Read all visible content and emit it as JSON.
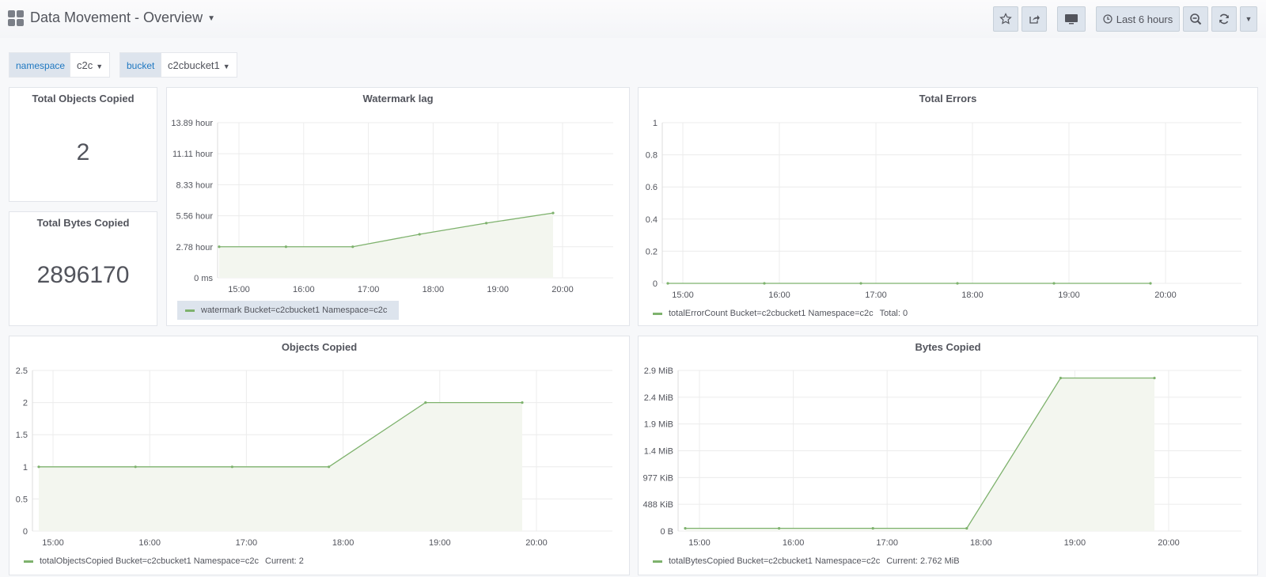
{
  "header": {
    "title": "Data Movement - Overview",
    "time_range": "Last 6 hours"
  },
  "variables": [
    {
      "label": "namespace",
      "value": "c2c"
    },
    {
      "label": "bucket",
      "value": "c2cbucket1"
    }
  ],
  "stats": [
    {
      "title": "Total Objects Copied",
      "value": "2"
    },
    {
      "title": "Total Bytes Copied",
      "value": "2896170"
    }
  ],
  "colors": {
    "series": "#7eb26d",
    "fill": "#f3f6ef",
    "accent": "#1f78c1"
  },
  "icons": [
    "dashboard-grid-icon",
    "star-icon",
    "share-icon",
    "tv-icon",
    "clock-icon",
    "zoom-out-icon",
    "refresh-icon",
    "caret-down-icon"
  ],
  "panels": {
    "watermark": {
      "title": "Watermark lag",
      "legend": "watermark Bucket=c2cbucket1 Namespace=c2c",
      "yticks": [
        "0 ms",
        "2.78 hour",
        "5.56 hour",
        "8.33 hour",
        "11.11 hour",
        "13.89 hour"
      ],
      "xticks": [
        "15:00",
        "16:00",
        "17:00",
        "18:00",
        "19:00",
        "20:00"
      ]
    },
    "errors": {
      "title": "Total Errors",
      "legend": "totalErrorCount Bucket=c2cbucket1 Namespace=c2c",
      "legend_extra": "Total: 0",
      "yticks": [
        "0",
        "0.2",
        "0.4",
        "0.6",
        "0.8",
        "1"
      ],
      "xticks": [
        "15:00",
        "16:00",
        "17:00",
        "18:00",
        "19:00",
        "20:00"
      ]
    },
    "objects": {
      "title": "Objects Copied",
      "legend": "totalObjectsCopied Bucket=c2cbucket1 Namespace=c2c",
      "legend_extra": "Current: 2",
      "yticks": [
        "0",
        "0.5",
        "1",
        "1.5",
        "2",
        "2.5"
      ],
      "xticks": [
        "15:00",
        "16:00",
        "17:00",
        "18:00",
        "19:00",
        "20:00"
      ]
    },
    "bytes": {
      "title": "Bytes Copied",
      "legend": "totalBytesCopied Bucket=c2cbucket1 Namespace=c2c",
      "legend_extra": "Current: 2.762 MiB",
      "yticks": [
        "0 B",
        "488 KiB",
        "977 KiB",
        "1.4 MiB",
        "1.9 MiB",
        "2.4 MiB",
        "2.9 MiB"
      ],
      "xticks": [
        "15:00",
        "16:00",
        "17:00",
        "18:00",
        "19:00",
        "20:00"
      ]
    }
  },
  "chart_data": [
    {
      "type": "area",
      "title": "Watermark lag",
      "x": [
        "14:51",
        "15:51",
        "16:51",
        "17:51",
        "18:51",
        "19:51"
      ],
      "series": [
        {
          "name": "watermark Bucket=c2cbucket1 Namespace=c2c",
          "values": [
            2.78,
            2.78,
            2.78,
            3.9,
            4.9,
            5.8
          ]
        }
      ],
      "y_unit": "hour",
      "ylim": [
        0,
        13.89
      ]
    },
    {
      "type": "line",
      "title": "Total Errors",
      "x": [
        "14:51",
        "15:51",
        "16:51",
        "17:51",
        "18:51",
        "19:51"
      ],
      "series": [
        {
          "name": "totalErrorCount Bucket=c2cbucket1 Namespace=c2c",
          "values": [
            0,
            0,
            0,
            0,
            0,
            0
          ]
        }
      ],
      "ylim": [
        0,
        1
      ]
    },
    {
      "type": "area",
      "title": "Objects Copied",
      "x": [
        "14:51",
        "15:51",
        "16:51",
        "17:51",
        "18:51",
        "19:51"
      ],
      "series": [
        {
          "name": "totalObjectsCopied Bucket=c2cbucket1 Namespace=c2c",
          "values": [
            1,
            1,
            1,
            1,
            2,
            2
          ]
        }
      ],
      "ylim": [
        0,
        2.5
      ]
    },
    {
      "type": "area",
      "title": "Bytes Copied",
      "x": [
        "14:51",
        "15:51",
        "16:51",
        "17:51",
        "18:51",
        "19:51"
      ],
      "series": [
        {
          "name": "totalBytesCopied Bucket=c2cbucket1 Namespace=c2c",
          "values": [
            0.05,
            0.05,
            0.05,
            0.05,
            2.762,
            2.762
          ]
        }
      ],
      "y_unit": "MiB",
      "ylim": [
        0,
        2.9
      ]
    }
  ]
}
